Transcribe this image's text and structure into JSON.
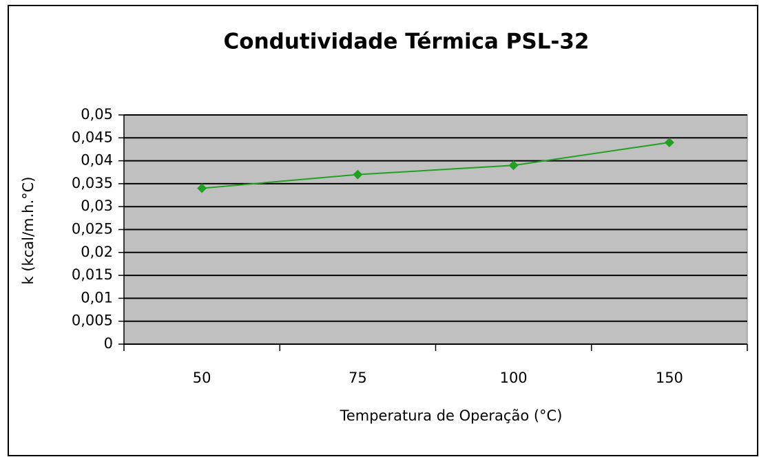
{
  "chart_data": {
    "type": "line",
    "title": "Condutividade Térmica PSL-32",
    "x_label": "Temperatura de Operação (°C)",
    "y_label": "k (kcal/m.h.°C)",
    "categories": [
      "50",
      "75",
      "100",
      "150"
    ],
    "values": [
      0.034,
      0.037,
      0.039,
      0.044
    ],
    "color": "#22a022",
    "ylim": [
      0,
      0.05
    ],
    "yticks": [
      0,
      {
        "value": 0.005,
        "label": "0,005"
      },
      {
        "value": 0.01,
        "label": "0,01"
      },
      {
        "value": 0.015,
        "label": "0,015"
      },
      {
        "value": 0.02,
        "label": "0,02"
      },
      {
        "value": 0.025,
        "label": "0,025"
      },
      {
        "value": 0.03,
        "label": "0,03"
      },
      {
        "value": 0.035,
        "label": "0,035"
      },
      {
        "value": 0.04,
        "label": "0,04"
      },
      {
        "value": 0.045,
        "label": "0,045"
      },
      {
        "value": 0.05,
        "label": "0,05"
      }
    ],
    "grid": true
  }
}
